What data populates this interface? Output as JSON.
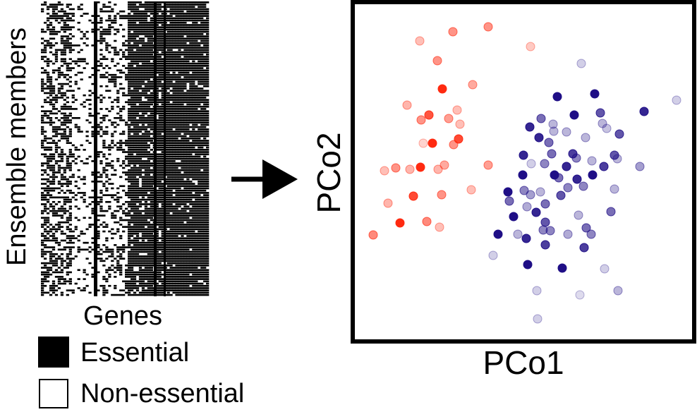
{
  "heatmap": {
    "y_axis_label": "Ensemble members",
    "x_axis_label": "Genes",
    "colors": {
      "essential": "#000000",
      "non_essential": "#ffffff"
    }
  },
  "legend": {
    "items": [
      {
        "label": "Essential",
        "fill": "#000000"
      },
      {
        "label": "Non-essential",
        "fill": "#ffffff"
      }
    ]
  },
  "arrow": {
    "icon": "right-arrow-icon"
  },
  "scatter": {
    "x_axis_label": "PCo1",
    "y_axis_label": "PCo2",
    "colors": {
      "red_group": "#ff2a10",
      "blue_group": "#1f0e86"
    }
  }
}
